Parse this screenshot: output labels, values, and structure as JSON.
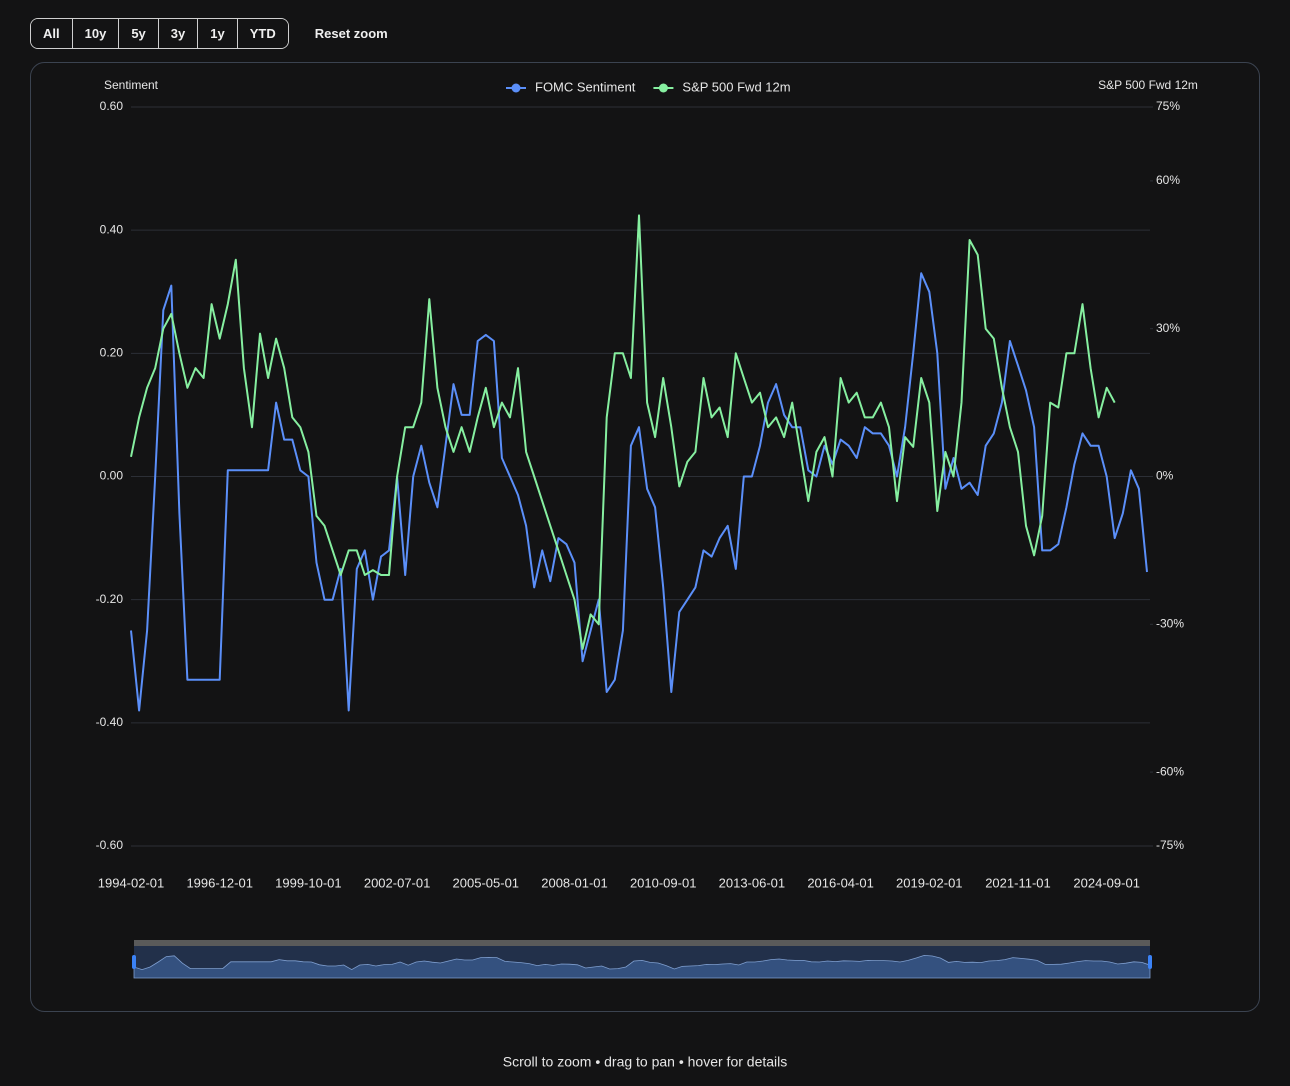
{
  "toolbar": {
    "ranges": [
      "All",
      "10y",
      "5y",
      "3y",
      "1y",
      "YTD"
    ],
    "reset": "Reset zoom"
  },
  "footer": "Scroll to zoom • drag to pan • hover for details",
  "chart_data": {
    "type": "line",
    "ylabel": "Sentiment",
    "y2label": "S&P 500 Fwd 12m",
    "grid": true,
    "ylim": [
      -0.6,
      0.6
    ],
    "yticks": [
      {
        "value": 0.6,
        "label": "0.60"
      },
      {
        "value": 0.4,
        "label": "0.40"
      },
      {
        "value": 0.2,
        "label": "0.20"
      },
      {
        "value": 0,
        "label": "0.00"
      },
      {
        "value": -0.2,
        "label": "-0.20"
      },
      {
        "value": -0.4,
        "label": "-0.40"
      },
      {
        "value": -0.6,
        "label": "-0.60"
      }
    ],
    "y2lim": [
      -75,
      75
    ],
    "y2ticks": [
      {
        "value": 75,
        "label": "75%"
      },
      {
        "value": 60,
        "label": "60%"
      },
      {
        "value": 30,
        "label": "30%"
      },
      {
        "value": 0,
        "label": "0%"
      },
      {
        "value": -30,
        "label": "-30%"
      },
      {
        "value": -60,
        "label": "-60%"
      },
      {
        "value": -75,
        "label": "-75%"
      }
    ],
    "categories": [
      "1994-02-01",
      null,
      null,
      null,
      null,
      null,
      null,
      null,
      null,
      null,
      null,
      "1996-12-01",
      null,
      null,
      null,
      null,
      null,
      null,
      null,
      null,
      null,
      null,
      "1999-10-01",
      null,
      null,
      null,
      null,
      null,
      null,
      null,
      null,
      null,
      null,
      "2002-07-01",
      null,
      null,
      null,
      null,
      null,
      null,
      null,
      null,
      null,
      null,
      "2005-05-01",
      null,
      null,
      null,
      null,
      null,
      null,
      null,
      null,
      null,
      null,
      "2008-01-01",
      null,
      null,
      null,
      null,
      null,
      null,
      null,
      null,
      null,
      null,
      "2010-09-01",
      null,
      null,
      null,
      null,
      null,
      null,
      null,
      null,
      null,
      null,
      "2013-06-01",
      null,
      null,
      null,
      null,
      null,
      null,
      null,
      null,
      null,
      null,
      "2016-04-01",
      null,
      null,
      null,
      null,
      null,
      null,
      null,
      null,
      null,
      null,
      "2019-02-01",
      null,
      null,
      null,
      null,
      null,
      null,
      null,
      null,
      null,
      null,
      "2021-11-01",
      null,
      null,
      null,
      null,
      null,
      null,
      null,
      null,
      null,
      null,
      "2024-09-01",
      null,
      null,
      null,
      null,
      null
    ],
    "series": [
      {
        "name": "FOMC Sentiment",
        "color": "#5b8ff9",
        "values": [
          -0.25,
          -0.38,
          -0.25,
          0.0,
          0.27,
          0.31,
          -0.06,
          -0.33,
          -0.33,
          -0.33,
          -0.33,
          -0.33,
          0.01,
          0.01,
          0.01,
          0.01,
          0.01,
          0.01,
          0.12,
          0.06,
          0.06,
          0.01,
          0.0,
          -0.14,
          -0.2,
          -0.2,
          -0.15,
          -0.38,
          -0.15,
          -0.12,
          -0.2,
          -0.13,
          -0.12,
          0.0,
          -0.16,
          0.0,
          0.05,
          -0.01,
          -0.05,
          0.05,
          0.15,
          0.1,
          0.1,
          0.22,
          0.23,
          0.22,
          0.03,
          0.0,
          -0.03,
          -0.08,
          -0.18,
          -0.12,
          -0.17,
          -0.1,
          -0.11,
          -0.14,
          -0.3,
          -0.25,
          -0.2,
          -0.35,
          -0.33,
          -0.25,
          0.05,
          0.08,
          -0.02,
          -0.05,
          -0.18,
          -0.35,
          -0.22,
          -0.2,
          -0.18,
          -0.12,
          -0.13,
          -0.1,
          -0.08,
          -0.15,
          0.0,
          0.0,
          0.05,
          0.12,
          0.15,
          0.1,
          0.08,
          0.08,
          0.01,
          0.0,
          0.05,
          0.02,
          0.06,
          0.05,
          0.03,
          0.08,
          0.07,
          0.07,
          0.05,
          0.0,
          0.08,
          0.2,
          0.33,
          0.3,
          0.2,
          -0.02,
          0.03,
          -0.02,
          -0.01,
          -0.03,
          0.05,
          0.07,
          0.12,
          0.22,
          0.18,
          0.14,
          0.08,
          -0.12,
          -0.12,
          -0.11,
          -0.05,
          0.02,
          0.07,
          0.05,
          0.05,
          0.0,
          -0.1,
          -0.06,
          0.01,
          -0.02,
          -0.155
        ]
      },
      {
        "name": "S&P 500 Fwd 12m",
        "color": "#86efa0",
        "axis": "y2",
        "values": [
          4,
          12,
          18,
          22,
          30,
          33,
          25,
          18,
          22,
          20,
          35,
          28,
          35,
          44,
          22,
          10,
          29,
          20,
          28,
          22,
          12,
          10,
          5,
          -8,
          -10,
          -15,
          -20,
          -15,
          -15,
          -20,
          -19,
          -20,
          -20,
          0,
          10,
          10,
          15,
          36,
          18,
          10,
          5,
          10,
          5,
          12,
          18,
          10,
          15,
          12,
          22,
          5,
          0,
          -5,
          -10,
          -15,
          -20,
          -25,
          -35,
          -28,
          -30,
          12,
          25,
          25,
          20,
          53,
          15,
          8,
          20,
          10,
          -2,
          3,
          5,
          20,
          12,
          14,
          8,
          25,
          20,
          15,
          17,
          10,
          12,
          8,
          15,
          5,
          -5,
          5,
          8,
          0,
          20,
          15,
          17,
          12,
          12,
          15,
          10,
          -5,
          8,
          6,
          20,
          15,
          -7,
          5,
          0,
          15,
          48,
          45,
          30,
          28,
          18,
          10,
          5,
          -10,
          -16,
          -8,
          15,
          14,
          25,
          25,
          35,
          22,
          12,
          18,
          15,
          null,
          null,
          null,
          null
        ]
      }
    ]
  }
}
